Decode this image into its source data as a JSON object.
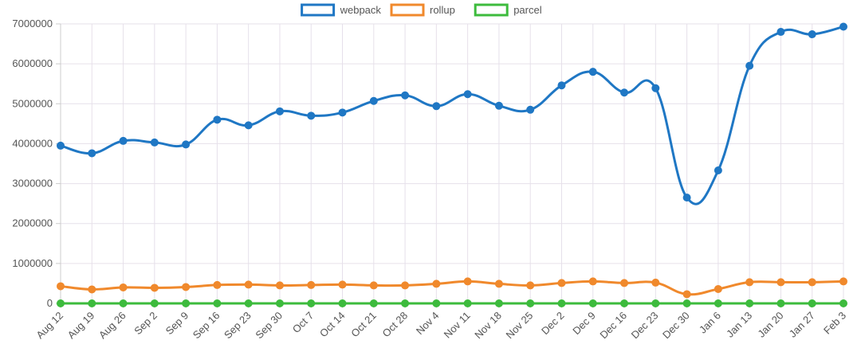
{
  "chart_data": {
    "type": "line",
    "title": "",
    "xlabel": "",
    "ylabel": "",
    "ylim": [
      0,
      7000000
    ],
    "yticks": [
      0,
      1000000,
      2000000,
      3000000,
      4000000,
      5000000,
      6000000,
      7000000
    ],
    "ytick_labels": [
      "0",
      "1000000",
      "2000000",
      "3000000",
      "4000000",
      "5000000",
      "6000000",
      "7000000"
    ],
    "grid": true,
    "legend_position": "top-center",
    "categories": [
      "Aug 12",
      "Aug 19",
      "Aug 26",
      "Sep 2",
      "Sep 9",
      "Sep 16",
      "Sep 23",
      "Sep 30",
      "Oct 7",
      "Oct 14",
      "Oct 21",
      "Oct 28",
      "Nov 4",
      "Nov 11",
      "Nov 18",
      "Nov 25",
      "Dec 2",
      "Dec 9",
      "Dec 16",
      "Dec 23",
      "Dec 30",
      "Jan 6",
      "Jan 13",
      "Jan 20",
      "Jan 27",
      "Feb 3"
    ],
    "series": [
      {
        "name": "webpack",
        "color": "#1f77c4",
        "values": [
          3950000,
          3760000,
          4070000,
          4030000,
          3980000,
          4600000,
          4460000,
          4810000,
          4700000,
          4780000,
          5070000,
          5210000,
          4940000,
          5240000,
          4950000,
          4850000,
          5460000,
          5800000,
          5280000,
          5390000,
          2650000,
          3330000,
          5950000,
          6800000,
          6740000,
          6930000
        ]
      },
      {
        "name": "rollup",
        "color": "#f0892c",
        "values": [
          430000,
          350000,
          400000,
          390000,
          410000,
          460000,
          470000,
          450000,
          460000,
          470000,
          450000,
          450000,
          490000,
          550000,
          490000,
          450000,
          510000,
          550000,
          510000,
          520000,
          230000,
          360000,
          530000,
          530000,
          530000,
          550000
        ]
      },
      {
        "name": "parcel",
        "color": "#3dbb3d",
        "values": [
          0,
          0,
          0,
          0,
          0,
          0,
          0,
          0,
          0,
          0,
          0,
          0,
          0,
          0,
          0,
          0,
          0,
          0,
          0,
          0,
          0,
          0,
          0,
          0,
          0,
          0
        ]
      }
    ]
  }
}
